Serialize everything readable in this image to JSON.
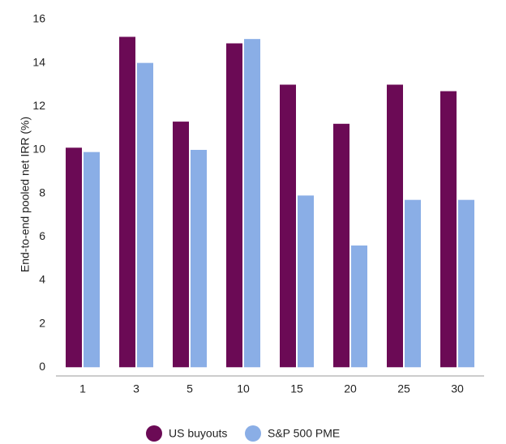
{
  "chart_data": {
    "type": "bar",
    "y_label": "End-to-end pooled net IRR (%)",
    "categories": [
      "1",
      "3",
      "5",
      "10",
      "15",
      "20",
      "25",
      "30"
    ],
    "series": [
      {
        "name": "US buyouts",
        "color": "#6b0a55",
        "values": [
          10.1,
          15.2,
          11.3,
          14.9,
          13.0,
          11.2,
          13.0,
          12.7
        ]
      },
      {
        "name": "S&P 500 PME",
        "color": "#8aaee6",
        "values": [
          9.9,
          14.0,
          10.0,
          15.1,
          7.9,
          5.6,
          7.7,
          7.7
        ]
      }
    ],
    "ylim": [
      -0.4,
      16
    ],
    "yticks": [
      0,
      2,
      4,
      6,
      8,
      10,
      12,
      14,
      16
    ],
    "grid": false,
    "legend": "bottom"
  }
}
